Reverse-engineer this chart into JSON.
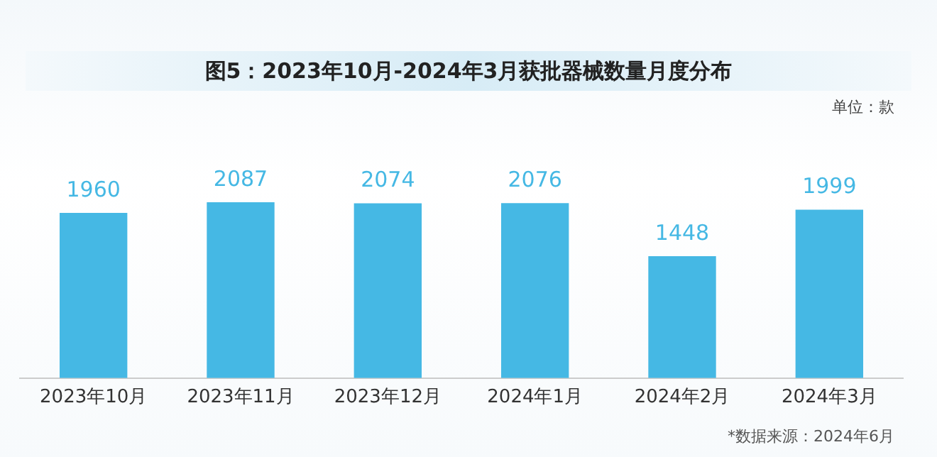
{
  "chart_data": {
    "type": "bar",
    "title": "图5：2023年10月-2024年3月获批器械数量月度分布",
    "subtitle": "单位：款",
    "categories": [
      "2023年10月",
      "2023年11月",
      "2023年12月",
      "2024年1月",
      "2024年2月",
      "2024年3月"
    ],
    "values": [
      1960,
      2087,
      2074,
      2076,
      1448,
      1999
    ],
    "color": "#45b8e4",
    "data_labels": true,
    "grid": false,
    "legend": false,
    "tick_labels": "x",
    "annotations": [
      "*数据来源：2024年6月"
    ]
  }
}
